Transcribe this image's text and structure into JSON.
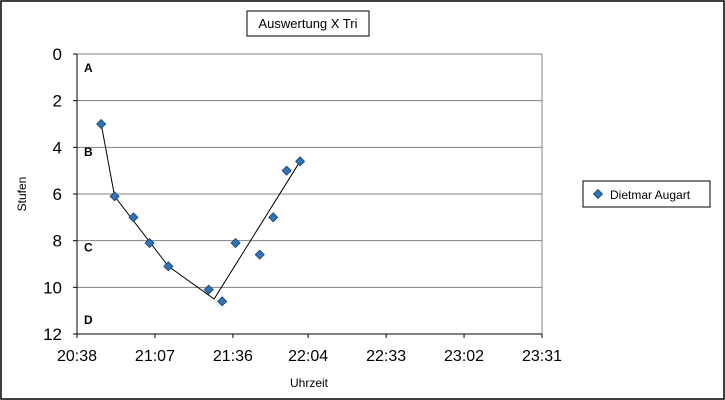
{
  "chart_data": {
    "type": "scatter",
    "title": "Auswertung X Tri",
    "xlabel": "Uhrzeit",
    "ylabel": "Stufen",
    "y_inverted": true,
    "ylim": [
      0,
      12
    ],
    "y_ticks": [
      "0",
      "2",
      "4",
      "6",
      "8",
      "10",
      "12"
    ],
    "x_ticks": [
      "20:38",
      "21:07",
      "21:36",
      "22:04",
      "22:33",
      "23:02",
      "23:31"
    ],
    "xlim": [
      "20:38",
      "23:31"
    ],
    "grid": "horizontal",
    "legend": "right",
    "zone_labels": [
      {
        "label": "A",
        "y": 0.6
      },
      {
        "label": "B",
        "y": 4.2
      },
      {
        "label": "C",
        "y": 8.3
      },
      {
        "label": "D",
        "y": 11.4
      }
    ],
    "series": [
      {
        "name": "Dietmar Augart",
        "color": "#2E75B6",
        "points": [
          {
            "x": "20:47",
            "y": 3.0
          },
          {
            "x": "20:52",
            "y": 6.1
          },
          {
            "x": "20:59",
            "y": 7.0
          },
          {
            "x": "21:05",
            "y": 8.1
          },
          {
            "x": "21:12",
            "y": 9.1
          },
          {
            "x": "21:27",
            "y": 10.1
          },
          {
            "x": "21:32",
            "y": 10.6
          },
          {
            "x": "21:37",
            "y": 8.1
          },
          {
            "x": "21:46",
            "y": 8.6
          },
          {
            "x": "21:51",
            "y": 7.0
          },
          {
            "x": "21:56",
            "y": 5.0
          },
          {
            "x": "22:01",
            "y": 4.6
          }
        ]
      }
    ],
    "trend_line": [
      {
        "x": "20:47",
        "y": 3.0
      },
      {
        "x": "20:52",
        "y": 6.1
      },
      {
        "x": "21:12",
        "y": 9.1
      },
      {
        "x": "21:29",
        "y": 10.5
      },
      {
        "x": "22:01",
        "y": 4.6
      }
    ]
  }
}
